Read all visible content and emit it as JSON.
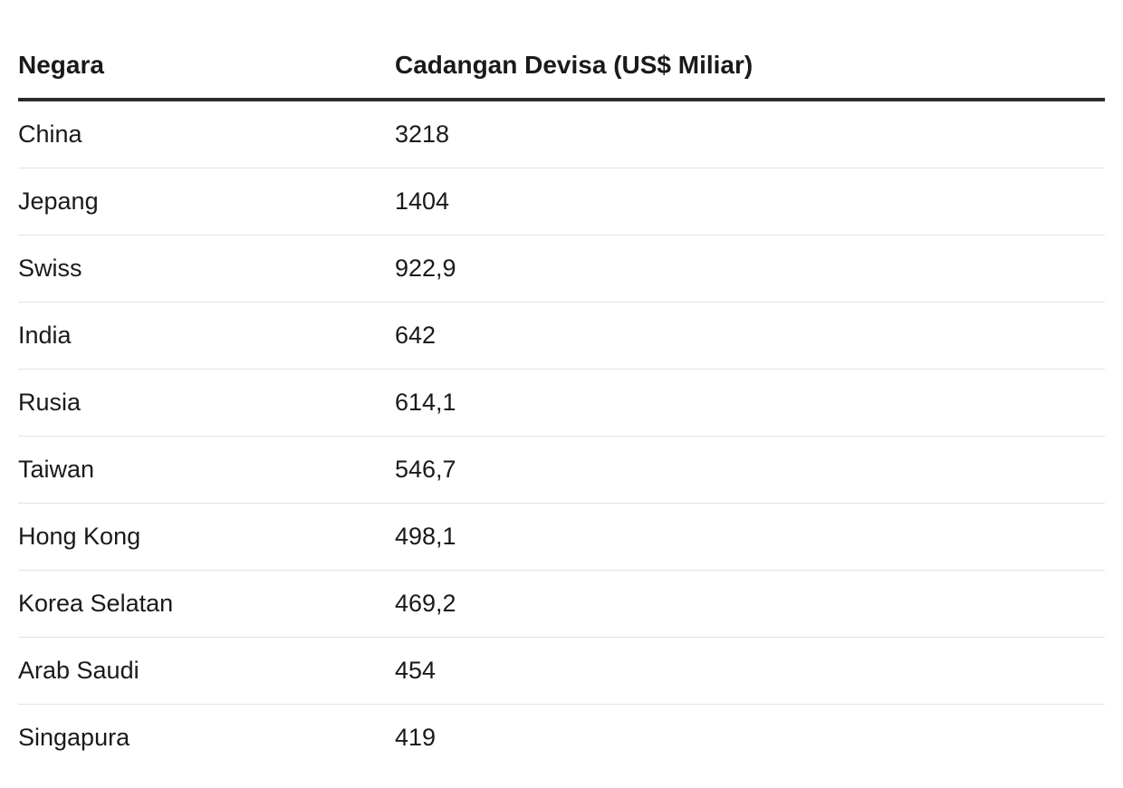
{
  "table": {
    "headers": [
      "Negara",
      "Cadangan Devisa (US$ Miliar)"
    ],
    "rows": [
      [
        "China",
        "3218"
      ],
      [
        "Jepang",
        "1404"
      ],
      [
        "Swiss",
        "922,9"
      ],
      [
        "India",
        "642"
      ],
      [
        "Rusia",
        "614,1"
      ],
      [
        "Taiwan",
        "546,7"
      ],
      [
        "Hong Kong",
        "498,1"
      ],
      [
        "Korea Selatan",
        "469,2"
      ],
      [
        "Arab Saudi",
        "454"
      ],
      [
        "Singapura",
        "419"
      ]
    ]
  }
}
